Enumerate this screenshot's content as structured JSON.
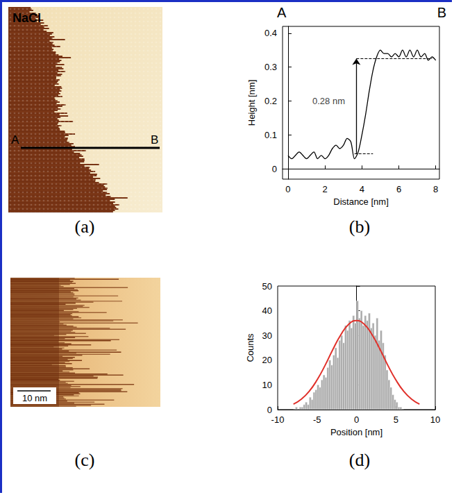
{
  "images": [
    {
      "panel_label": "(a)",
      "title": "NaCl",
      "line_labels": [
        "A",
        "B"
      ]
    },
    {
      "panel_label": "(c)",
      "scale_bar": "10 nm"
    }
  ],
  "chart_data": [
    {
      "type": "line",
      "panel_label": "(b)",
      "end_labels": [
        "A",
        "B"
      ],
      "xlabel": "Distance [nm]",
      "ylabel": "Height [nm]",
      "color": "#000000",
      "x": [
        0,
        0.2,
        0.4,
        0.6,
        0.8,
        1.0,
        1.2,
        1.4,
        1.6,
        1.8,
        2.0,
        2.2,
        2.4,
        2.6,
        2.8,
        3.0,
        3.2,
        3.4,
        3.6,
        3.8,
        4.0,
        4.2,
        4.4,
        4.6,
        4.8,
        5.0,
        5.2,
        5.4,
        5.6,
        5.8,
        6.0,
        6.2,
        6.4,
        6.6,
        6.8,
        7.0,
        7.2,
        7.4,
        7.6,
        7.8,
        8.0
      ],
      "values": [
        0.04,
        0.03,
        0.04,
        0.05,
        0.04,
        0.03,
        0.04,
        0.05,
        0.03,
        0.04,
        0.03,
        0.04,
        0.06,
        0.07,
        0.06,
        0.07,
        0.09,
        0.08,
        0.03,
        0.05,
        0.1,
        0.16,
        0.23,
        0.29,
        0.33,
        0.35,
        0.34,
        0.34,
        0.33,
        0.34,
        0.33,
        0.35,
        0.33,
        0.35,
        0.33,
        0.35,
        0.33,
        0.34,
        0.32,
        0.33,
        0.32
      ],
      "xlim": [
        -0.3,
        8.2
      ],
      "ylim": [
        -0.03,
        0.42
      ],
      "xticks": [
        0,
        2,
        4,
        6,
        8
      ],
      "yticks": [
        0,
        0.1,
        0.2,
        0.3,
        0.4
      ],
      "reference_lines": [
        {
          "y": 0.045,
          "x": [
            3.6,
            4.6
          ]
        },
        {
          "y": 0.325,
          "x": [
            3.7,
            7.8
          ]
        }
      ],
      "arrow": {
        "x": 3.7,
        "y": [
          0.045,
          0.325
        ]
      },
      "annotations": [
        {
          "text": "0.28 nm",
          "x": 2.2,
          "y": 0.2
        }
      ]
    },
    {
      "type": "histogram",
      "panel_label": "(d)",
      "xlabel": "Position [nm]",
      "ylabel": "Counts",
      "color": "#a9a9a9",
      "bins": [
        -8,
        -7.75,
        -7.5,
        -7.25,
        -7,
        -6.75,
        -6.5,
        -6.25,
        -6,
        -5.75,
        -5.5,
        -5.25,
        -5,
        -4.75,
        -4.5,
        -4.25,
        -4,
        -3.75,
        -3.5,
        -3.25,
        -3,
        -2.75,
        -2.5,
        -2.25,
        -2,
        -1.75,
        -1.5,
        -1.25,
        -1,
        -0.75,
        -0.5,
        -0.25,
        0,
        0.25,
        0.5,
        0.75,
        1,
        1.25,
        1.5,
        1.75,
        2,
        2.25,
        2.5,
        2.75,
        3,
        3.25,
        3.5,
        3.75,
        4,
        4.25,
        4.5,
        4.75,
        5,
        5.25,
        5.5,
        5.75,
        6
      ],
      "values": [
        0,
        1,
        0,
        1,
        1,
        2,
        3,
        2,
        5,
        4,
        7,
        8,
        10,
        9,
        12,
        14,
        13,
        17,
        20,
        18,
        22,
        25,
        21,
        28,
        30,
        27,
        34,
        32,
        36,
        33,
        38,
        35,
        44,
        37,
        40,
        34,
        38,
        36,
        39,
        33,
        35,
        30,
        37,
        28,
        32,
        27,
        22,
        16,
        12,
        9,
        6,
        4,
        3,
        1,
        1,
        0
      ],
      "fit": {
        "type": "line",
        "color": "#e0302a",
        "x": [
          -8,
          -7,
          -6,
          -5,
          -4,
          -3,
          -2,
          -1,
          0,
          1,
          2,
          3,
          4,
          5,
          6,
          7,
          8
        ],
        "values": [
          2.2,
          4.2,
          7.4,
          12.0,
          17.8,
          24.3,
          30.2,
          34.5,
          36,
          34.5,
          30.2,
          24.3,
          17.8,
          12.0,
          7.4,
          4.2,
          2.2
        ]
      },
      "xlim": [
        -10,
        10
      ],
      "ylim": [
        0,
        50
      ],
      "xticks": [
        -10,
        -5,
        0,
        5,
        10
      ],
      "yticks": [
        0,
        10,
        20,
        30,
        40,
        50
      ]
    }
  ]
}
